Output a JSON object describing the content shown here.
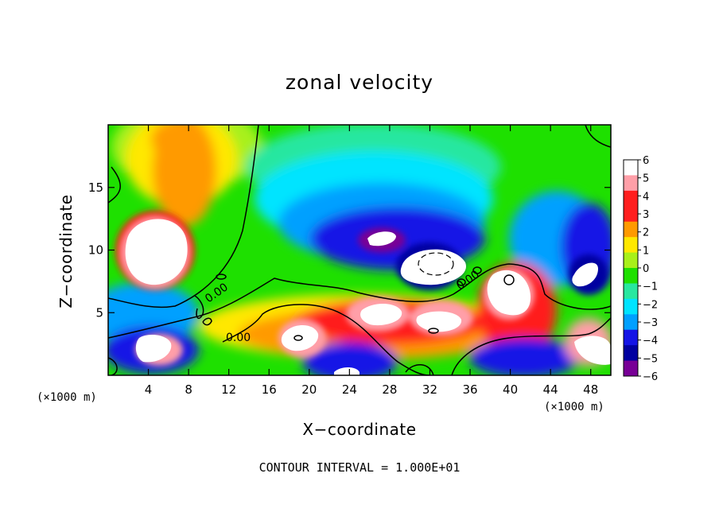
{
  "chart_data": {
    "type": "heatmap",
    "title": "zonal velocity",
    "xlabel": "X−coordinate",
    "ylabel": "Z−coordinate",
    "x_unit_left": "(×1000 m)",
    "x_unit_right": "(×1000 m)",
    "xlim": [
      0,
      50
    ],
    "ylim": [
      0,
      20
    ],
    "x_ticks": [
      "4",
      "8",
      "12",
      "16",
      "20",
      "24",
      "28",
      "32",
      "36",
      "40",
      "44",
      "48"
    ],
    "y_ticks": [
      "5",
      "10",
      "15"
    ],
    "colorbar_ticks": [
      "6",
      "5",
      "4",
      "3",
      "2",
      "1",
      "0",
      "−1",
      "−2",
      "−3",
      "−4",
      "−5",
      "−6"
    ],
    "colorbar_range": [
      -6,
      6
    ],
    "colors": {
      "white": "#ffffff",
      "pink": "#ff9fa8",
      "red": "#ff1e1e",
      "orange": "#ff9a00",
      "yellow": "#ffe800",
      "yellowgreen": "#a8f01a",
      "green": "#1ee000",
      "greencyan": "#28e7a0",
      "cyan": "#00e4ff",
      "lightblue": "#00a0ff",
      "blue": "#1414e6",
      "darkblue": "#0000a0",
      "purple": "#780096"
    },
    "contour_labels": [
      "0.00",
      "0.00",
      "0.00"
    ],
    "footer": "CONTOUR INTERVAL = 1.000E+01"
  }
}
